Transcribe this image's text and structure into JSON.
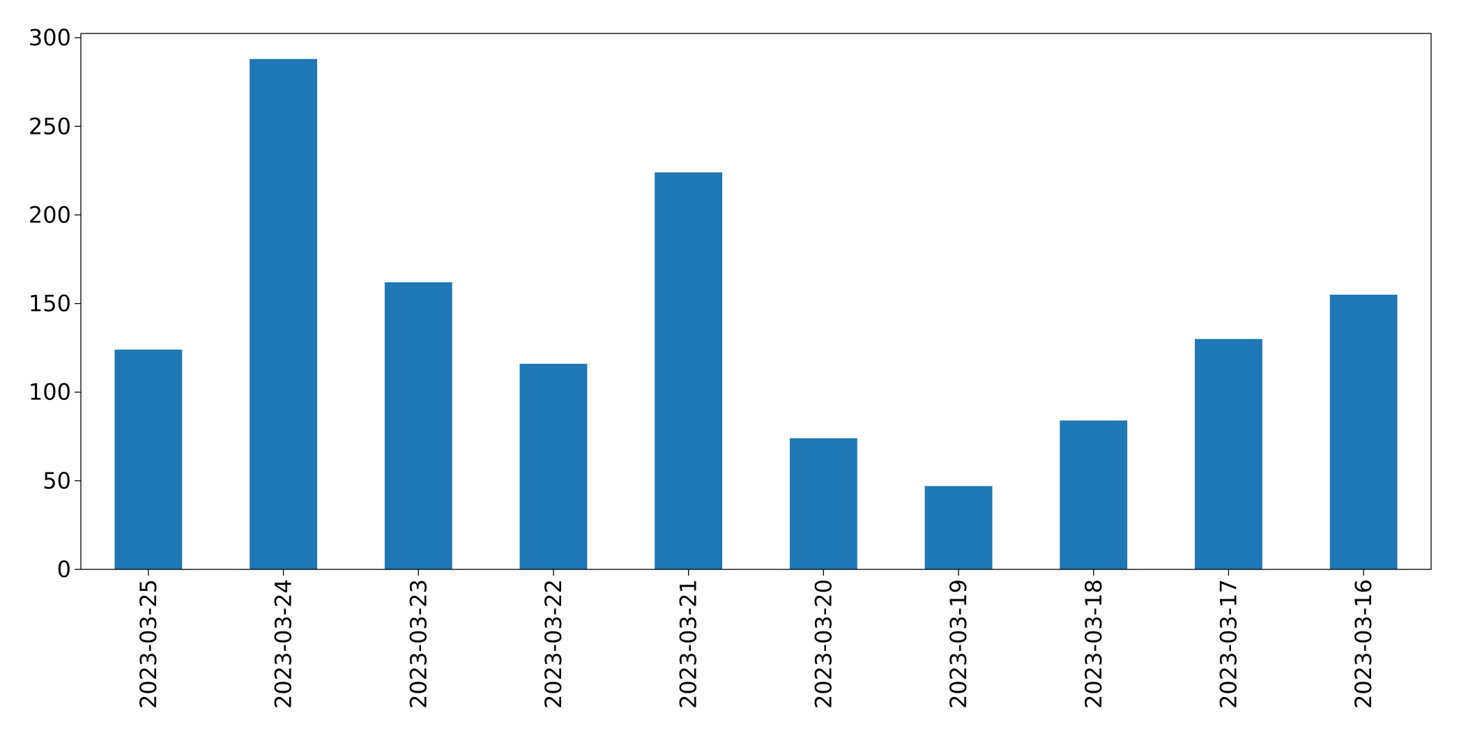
{
  "chart_data": {
    "type": "bar",
    "categories": [
      "2023-03-25",
      "2023-03-24",
      "2023-03-23",
      "2023-03-22",
      "2023-03-21",
      "2023-03-20",
      "2023-03-19",
      "2023-03-18",
      "2023-03-17",
      "2023-03-16"
    ],
    "values": [
      124,
      288,
      162,
      116,
      224,
      74,
      47,
      84,
      130,
      155
    ],
    "color": "#1f77b4",
    "ylim": [
      0,
      302.4
    ],
    "yticks": [
      0,
      50,
      100,
      150,
      200,
      250,
      300
    ],
    "grid": false
  }
}
